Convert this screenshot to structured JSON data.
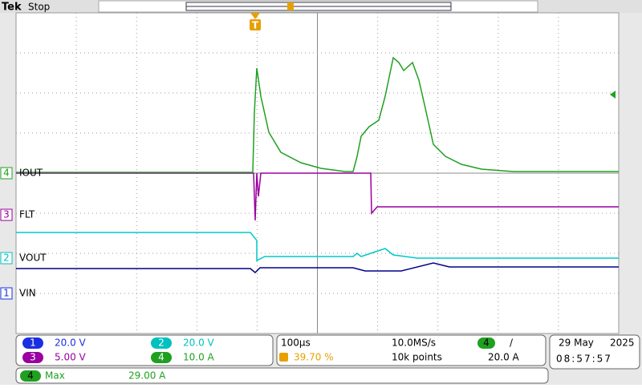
{
  "header": {
    "brand": "Tek",
    "status": "Stop"
  },
  "channels": [
    {
      "number": "1",
      "label": "VIN",
      "scale": "20.0 V"
    },
    {
      "number": "2",
      "label": "VOUT",
      "scale": "20.0 V"
    },
    {
      "number": "3",
      "label": "FLT",
      "scale": "5.00 V"
    },
    {
      "number": "4",
      "label": "IOUT",
      "scale": "10.0 A"
    }
  ],
  "timebase": {
    "scale": "100µs",
    "trigger_position": "39.70 %",
    "sample_rate": "10.0MS/s",
    "record_length": "10k points"
  },
  "trigger": {
    "marker": "T",
    "source": "4",
    "slope": "/",
    "level": "20.0 A"
  },
  "datetime": {
    "date": "29 May",
    "year": "2025",
    "time": "08:57:57"
  },
  "measurement": {
    "source": "4",
    "name": "Max",
    "value": "29.00 A"
  }
}
